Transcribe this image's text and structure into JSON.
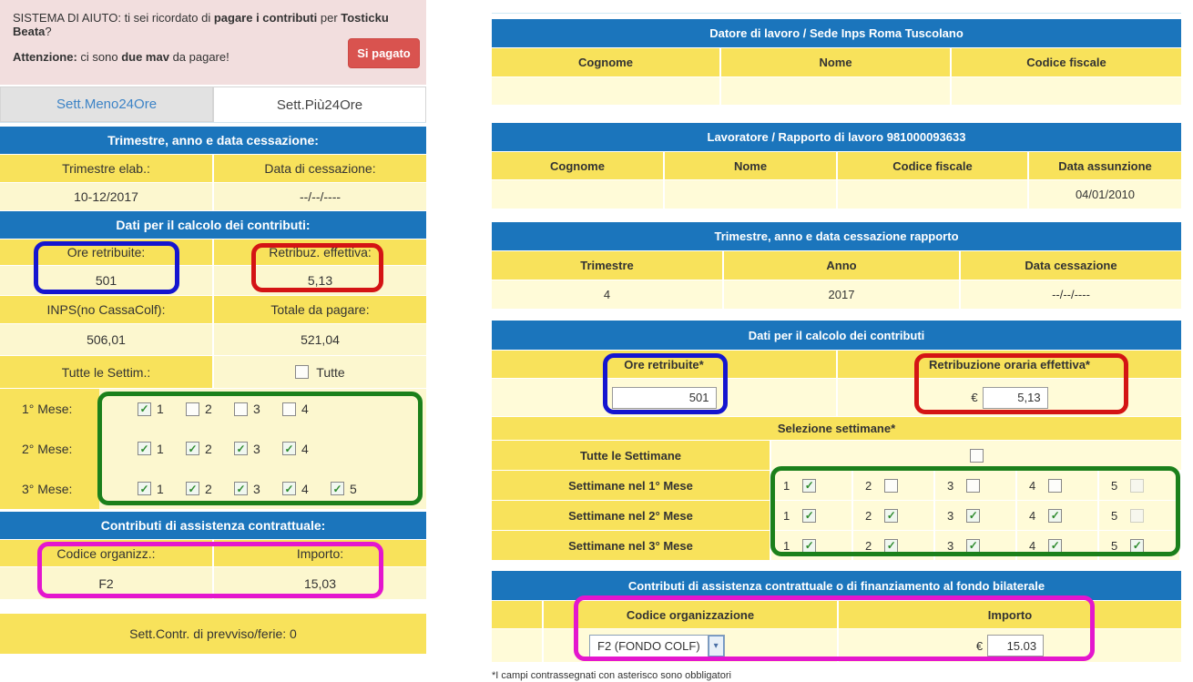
{
  "colors": {
    "header_blue": "#1b75bc",
    "label_yellow": "#f8e25b",
    "value_yellow": "#fffbd8",
    "help_pink": "#f2dede",
    "button_red": "#d9534f",
    "outline_blue": "#1515cf",
    "outline_red": "#d41414",
    "outline_green": "#1b801b",
    "outline_magenta": "#e416ce",
    "tab_link_blue": "#3c83c6"
  },
  "left": {
    "help": {
      "s1": "SISTEMA DI AIUTO: ti sei ricordato di ",
      "s2": "pagare i contributi",
      "s3": " per ",
      "s4": "Tosticku Beata",
      "s5": "?",
      "a1": "Attenzione:",
      "a2": " ci sono ",
      "a3": "due mav",
      "a4": " da pagare!",
      "button": "Si pagato"
    },
    "tabs": [
      {
        "label": "Sett.Meno24Ore",
        "active": false
      },
      {
        "label": "Sett.Più24Ore",
        "active": true
      }
    ],
    "sec1_title": "Trimestre, anno e data cessazione:",
    "trimestre_label": "Trimestre elab.:",
    "cessazione_label": "Data di cessazione:",
    "trimestre_value": "10-12/2017",
    "cessazione_value": "--/--/----",
    "sec2_title": "Dati per il calcolo dei contributi:",
    "ore_label": "Ore retribuite:",
    "retribuz_label": "Retribuz. effettiva:",
    "ore_value": "501",
    "retribuz_value": "5,13",
    "inps_label": "INPS(no CassaColf):",
    "totale_label": "Totale da pagare:",
    "inps_value": "506,01",
    "totale_value": "521,04",
    "tutte_label": "Tutte le Settim.:",
    "tutte_cb_label": "Tutte",
    "tutte_checked": false,
    "months": [
      {
        "label": "1° Mese:",
        "weeks": [
          {
            "n": "1",
            "checked": true
          },
          {
            "n": "2",
            "checked": false
          },
          {
            "n": "3",
            "checked": false
          },
          {
            "n": "4",
            "checked": false
          }
        ]
      },
      {
        "label": "2° Mese:",
        "weeks": [
          {
            "n": "1",
            "checked": true
          },
          {
            "n": "2",
            "checked": true
          },
          {
            "n": "3",
            "checked": true
          },
          {
            "n": "4",
            "checked": true
          }
        ]
      },
      {
        "label": "3° Mese:",
        "weeks": [
          {
            "n": "1",
            "checked": true
          },
          {
            "n": "2",
            "checked": true
          },
          {
            "n": "3",
            "checked": true
          },
          {
            "n": "4",
            "checked": true
          },
          {
            "n": "5",
            "checked": true
          }
        ]
      }
    ],
    "sec3_title": "Contributi di assistenza contrattuale:",
    "codice_label": "Codice organizz.:",
    "importo_label": "Importo:",
    "codice_value": "F2",
    "importo_value": "15,03",
    "footer_row": "Sett.Contr. di prevviso/ferie: 0"
  },
  "right": {
    "t1_title": "Datore di lavoro / Sede Inps Roma Tuscolano",
    "t1_cols": [
      "Cognome",
      "Nome",
      "Codice fiscale"
    ],
    "t1_values": [
      "",
      "",
      ""
    ],
    "t2_title": "Lavoratore / Rapporto di lavoro 981000093633",
    "t2_cols": [
      "Cognome",
      "Nome",
      "Codice fiscale",
      "Data assunzione"
    ],
    "t2_values": [
      "",
      "",
      "",
      "04/01/2010"
    ],
    "t3_title": "Trimestre, anno e data cessazione rapporto",
    "t3_cols": [
      "Trimestre",
      "Anno",
      "Data cessazione"
    ],
    "t3_values": [
      "4",
      "2017",
      "--/--/----"
    ],
    "t4_title": "Dati per il calcolo dei contributi",
    "ore_label": "Ore retribuite*",
    "retribuzione_label": "Retribuzione oraria effettiva*",
    "ore_input": "501",
    "euro": "€",
    "retribuzione_input": "5,13",
    "selezione_title": "Selezione settimane*",
    "tutte_label": "Tutte le Settimane",
    "tutte_checked": false,
    "weeks_rows": [
      {
        "label": "Settimane nel 1° Mese",
        "weeks": [
          {
            "n": "1",
            "checked": true
          },
          {
            "n": "2",
            "checked": false
          },
          {
            "n": "3",
            "checked": false
          },
          {
            "n": "4",
            "checked": false
          },
          {
            "n": "5",
            "checked": false,
            "disabled": true
          }
        ]
      },
      {
        "label": "Settimane nel 2° Mese",
        "weeks": [
          {
            "n": "1",
            "checked": true
          },
          {
            "n": "2",
            "checked": true
          },
          {
            "n": "3",
            "checked": true
          },
          {
            "n": "4",
            "checked": true
          },
          {
            "n": "5",
            "checked": false,
            "disabled": true
          }
        ]
      },
      {
        "label": "Settimane nel 3° Mese",
        "weeks": [
          {
            "n": "1",
            "checked": true
          },
          {
            "n": "2",
            "checked": true
          },
          {
            "n": "3",
            "checked": true
          },
          {
            "n": "4",
            "checked": true
          },
          {
            "n": "5",
            "checked": true
          }
        ]
      }
    ],
    "t5_title": "Contributi di assistenza contrattuale o di finanziamento al fondo bilaterale",
    "codice_label": "Codice organizzazione",
    "importo_label": "Importo",
    "codice_value": "F2 (FONDO COLF)",
    "importo_input": "15.03",
    "footnote": "*I campi contrassegnati con asterisco sono obbligatori"
  }
}
